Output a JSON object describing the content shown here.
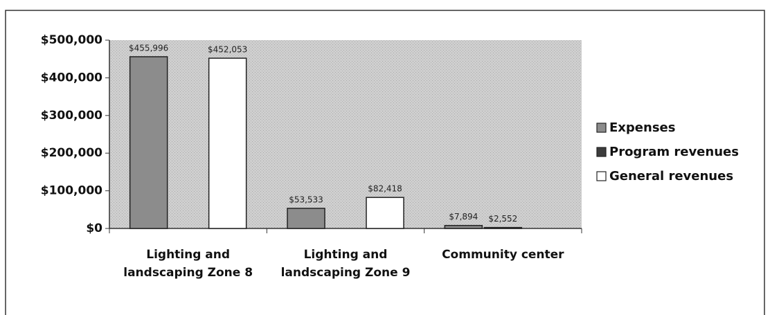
{
  "chart_data": {
    "type": "bar",
    "categories": [
      "Lighting and landscaping  Zone 8",
      "Lighting and landscaping Zone 9",
      "Community center"
    ],
    "series": [
      {
        "name": "Expenses",
        "color": "#8c8c8c",
        "values": [
          455996,
          53533,
          7894
        ],
        "value_labels": [
          "$455,996",
          "$53,533",
          "$7,894"
        ]
      },
      {
        "name": "Program revenues",
        "color": "#3c3c3c",
        "values": [
          null,
          null,
          2552
        ],
        "value_labels": [
          null,
          null,
          "$2,552"
        ]
      },
      {
        "name": "General revenues",
        "color": "#ffffff",
        "values": [
          452053,
          82418,
          null
        ],
        "value_labels": [
          "$452,053",
          "$82,418",
          null
        ]
      }
    ],
    "ylim": [
      0,
      500000
    ],
    "yticks": [
      {
        "value": 0,
        "label": "$0"
      },
      {
        "value": 100000,
        "label": "$100,000"
      },
      {
        "value": 200000,
        "label": "$200,000"
      },
      {
        "value": 300000,
        "label": "$300,000"
      },
      {
        "value": 400000,
        "label": "$400,000"
      },
      {
        "value": 500000,
        "label": "$500,000"
      }
    ],
    "legend": "right"
  }
}
